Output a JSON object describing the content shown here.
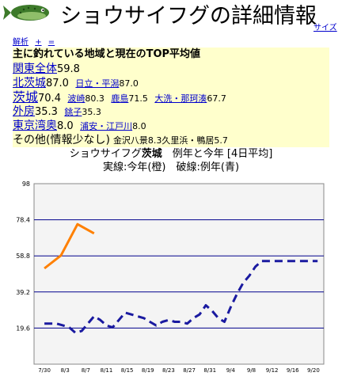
{
  "header": {
    "title": "ショウサイフグの詳細情報",
    "size_link": "サイズ",
    "fish_icon": "pufferfish-icon"
  },
  "subnav": [
    "解析",
    "+",
    "="
  ],
  "info": {
    "heading": "主に釣れている地域と現在のTOP平均値",
    "rows": [
      {
        "area": "関東全体",
        "value": "59.8",
        "subs": []
      },
      {
        "area": "北茨城",
        "value": "87.0",
        "subs": [
          {
            "name": "日立・平潟",
            "value": "87.0"
          }
        ]
      },
      {
        "area": "茨城",
        "value": "70.4",
        "subs": [
          {
            "name": "波崎",
            "value": "80.3"
          },
          {
            "name": "鹿島",
            "value": "71.5"
          },
          {
            "name": "大洗・那珂湊",
            "value": "67.7"
          }
        ]
      },
      {
        "area": "外房",
        "value": "35.3",
        "subs": [
          {
            "name": "銚子",
            "value": "35.3"
          }
        ]
      },
      {
        "area": "東京湾奥",
        "value": "8.0",
        "subs": [
          {
            "name": "浦安・江戸川",
            "value": "8.0"
          }
        ]
      }
    ],
    "other": {
      "label": "その他(情報少なし)",
      "text": "金沢八景8.3久里浜・鴨居5.7"
    }
  },
  "chart_title": {
    "prefix": "ショウサイフグ",
    "region": "茨城",
    "suffix": "　例年と今年 [4日平均]",
    "line2": "実線:今年(橙)　破線:例年(青)"
  },
  "chart_data": {
    "type": "line",
    "categories": [
      "7/30",
      "8/3",
      "8/7",
      "8/11",
      "8/15",
      "8/19",
      "8/23",
      "8/27",
      "8/31",
      "9/4",
      "9/8",
      "9/12",
      "9/16",
      "9/20"
    ],
    "yticks": [
      "19.6",
      "39.2",
      "58.8",
      "78.4",
      "98"
    ],
    "ylim": [
      0,
      98
    ],
    "grid": true,
    "colors": {
      "this_year": "#ff8000",
      "average": "#1a1aa0",
      "grid": "#00008b",
      "plot_bg": "#f4f4f4"
    },
    "series": [
      {
        "name": "今年",
        "style": "solid",
        "x": [
          0,
          0.8,
          1.6,
          2.4
        ],
        "values": [
          52,
          59,
          76,
          71
        ]
      },
      {
        "name": "例年",
        "style": "dashed",
        "x": [
          0,
          0.3,
          0.6,
          0.9,
          1.2,
          1.5,
          1.8,
          2.1,
          2.4,
          2.7,
          3.0,
          3.3,
          3.6,
          3.9,
          4.2,
          4.5,
          4.8,
          5.1,
          5.4,
          5.7,
          6.0,
          6.3,
          6.6,
          6.9,
          7.2,
          7.5,
          7.8,
          8.1,
          8.4,
          8.7,
          9.0,
          9.3,
          9.6,
          9.9,
          10.2,
          10.5,
          10.8,
          11.1,
          11.4,
          11.7,
          12.0,
          12.3,
          12.6,
          12.9,
          13.2
        ],
        "values": [
          22,
          22,
          22,
          21,
          20,
          17,
          18,
          22,
          26,
          24,
          21,
          20,
          24,
          28,
          27,
          26,
          25,
          23,
          21,
          23,
          24,
          23,
          23,
          22,
          25,
          27,
          32,
          29,
          25,
          23,
          31,
          38,
          44,
          48,
          53,
          56,
          56,
          56,
          56,
          56,
          56,
          56,
          56,
          56,
          56
        ]
      }
    ]
  }
}
